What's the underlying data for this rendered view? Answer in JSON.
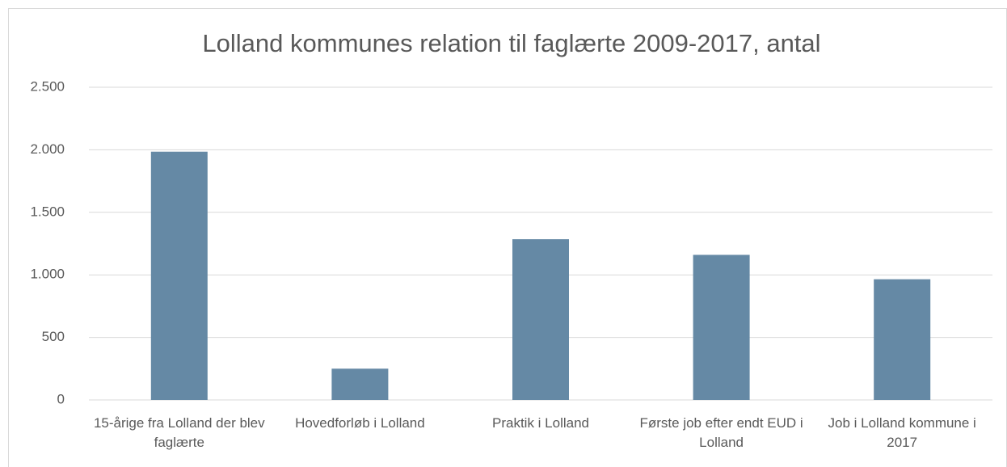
{
  "chart_data": {
    "type": "bar",
    "title": "Lolland kommunes relation til faglærte 2009-2017, antal",
    "categories": [
      "15-årige fra Lolland der blev faglærte",
      "Hovedforløb i Lolland",
      "Praktik i Lolland",
      "Første job efter endt EUD i Lolland",
      "Job i Lolland kommune i 2017"
    ],
    "values": [
      1985,
      250,
      1285,
      1160,
      965
    ],
    "color": "#6589a5",
    "ylim": [
      0,
      2500
    ],
    "yticks": [
      0,
      500,
      {
        "value": 1000,
        "label": "1.000"
      },
      {
        "value": 1500,
        "label": "1.500"
      },
      {
        "value": 2000,
        "label": "2.000"
      },
      {
        "value": 2500,
        "label": "2.500"
      }
    ],
    "grid": true
  }
}
